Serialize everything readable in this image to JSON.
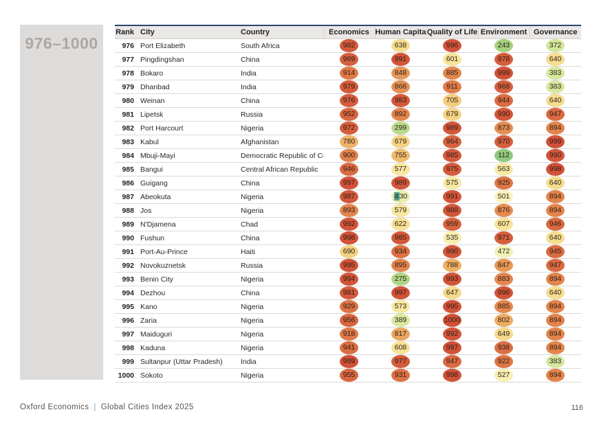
{
  "page": {
    "range_title": "976–1000",
    "footer": {
      "brand": "Oxford Economics",
      "separator": "|",
      "doc_title": "Global Cities Index 2025",
      "page_number": "116"
    }
  },
  "colors": {
    "header_border_navy": "#2a466f",
    "header_border_light": "#8fa0bc",
    "header_bg": "#eae8e6",
    "row_line": "#dbd9d7",
    "sidebar_bg": "#dedcdb",
    "sidebar_text": "#aca8a4",
    "footer_separator_blue": "#6fa8dc",
    "score_text": "#2e1f15",
    "selection_highlight": "#57a08c",
    "score_scale": [
      [
        0,
        "#7cc47e"
      ],
      [
        250,
        "#a6d27e"
      ],
      [
        400,
        "#dceaa2"
      ],
      [
        450,
        "#ecf2b4"
      ],
      [
        500,
        "#f8f2bc"
      ],
      [
        600,
        "#f7e49a"
      ],
      [
        700,
        "#f3cf7e"
      ],
      [
        800,
        "#ecac62"
      ],
      [
        900,
        "#e1814b"
      ],
      [
        1000,
        "#d05138"
      ]
    ]
  },
  "table": {
    "columns": [
      "Rank",
      "City",
      "Country",
      "Economics",
      "Human Capital",
      "Quality of Life",
      "Environment",
      "Governance"
    ],
    "highlight": {
      "rank": "987",
      "score_index": 1,
      "selected_chars": 1
    },
    "rows": [
      {
        "rank": "976",
        "city": "Port Elizabeth",
        "country": "South Africa",
        "scores": [
          982,
          638,
          996,
          243,
          372
        ]
      },
      {
        "rank": "977",
        "city": "Pingdingshan",
        "country": "China",
        "scores": [
          969,
          991,
          601,
          978,
          640
        ]
      },
      {
        "rank": "978",
        "city": "Bokaro",
        "country": "India",
        "scores": [
          914,
          848,
          885,
          999,
          383
        ]
      },
      {
        "rank": "979",
        "city": "Dhanbad",
        "country": "India",
        "scores": [
          979,
          866,
          911,
          968,
          383
        ]
      },
      {
        "rank": "980",
        "city": "Weinan",
        "country": "China",
        "scores": [
          976,
          983,
          705,
          944,
          640
        ]
      },
      {
        "rank": "981",
        "city": "Lipetsk",
        "country": "Russia",
        "scores": [
          952,
          892,
          679,
          990,
          947
        ]
      },
      {
        "rank": "982",
        "city": "Port Harcourt",
        "country": "Nigeria",
        "scores": [
          972,
          299,
          989,
          873,
          894
        ]
      },
      {
        "rank": "983",
        "city": "Kabul",
        "country": "Afghanistan",
        "scores": [
          780,
          679,
          964,
          970,
          999
        ]
      },
      {
        "rank": "984",
        "city": "Mbuji-Mayi",
        "country": "Democratic Republic of Congo",
        "scores": [
          900,
          755,
          985,
          112,
          990
        ]
      },
      {
        "rank": "985",
        "city": "Bangui",
        "country": "Central African Republic",
        "scores": [
          946,
          577,
          975,
          563,
          998
        ]
      },
      {
        "rank": "986",
        "city": "Guigang",
        "country": "China",
        "scores": [
          997,
          989,
          575,
          925,
          640
        ]
      },
      {
        "rank": "987",
        "city": "Abeokuta",
        "country": "Nigeria",
        "scores": [
          987,
          430,
          991,
          501,
          894
        ]
      },
      {
        "rank": "988",
        "city": "Jos",
        "country": "Nigeria",
        "scores": [
          893,
          579,
          988,
          876,
          894
        ]
      },
      {
        "rank": "989",
        "city": "N'Djamena",
        "country": "Chad",
        "scores": [
          992,
          622,
          959,
          607,
          946
        ]
      },
      {
        "rank": "990",
        "city": "Fushun",
        "country": "China",
        "scores": [
          998,
          985,
          535,
          971,
          640
        ]
      },
      {
        "rank": "991",
        "city": "Port-Au-Prince",
        "country": "Haiti",
        "scores": [
          690,
          934,
          990,
          472,
          945
        ]
      },
      {
        "rank": "992",
        "city": "Novokuznetsk",
        "country": "Russia",
        "scores": [
          995,
          895,
          788,
          847,
          947
        ]
      },
      {
        "rank": "993",
        "city": "Benin City",
        "country": "Nigeria",
        "scores": [
          994,
          275,
          993,
          883,
          894
        ]
      },
      {
        "rank": "994",
        "city": "Dezhou",
        "country": "China",
        "scores": [
          981,
          997,
          647,
          996,
          640
        ]
      },
      {
        "rank": "995",
        "city": "Kano",
        "country": "Nigeria",
        "scores": [
          929,
          573,
          995,
          885,
          894
        ]
      },
      {
        "rank": "996",
        "city": "Zaria",
        "country": "Nigeria",
        "scores": [
          956,
          389,
          1000,
          802,
          894
        ]
      },
      {
        "rank": "997",
        "city": "Maiduguri",
        "country": "Nigeria",
        "scores": [
          918,
          817,
          992,
          649,
          894
        ]
      },
      {
        "rank": "998",
        "city": "Kaduna",
        "country": "Nigeria",
        "scores": [
          941,
          608,
          997,
          938,
          894
        ]
      },
      {
        "rank": "999",
        "city": "Sultanpur (Uttar Pradesh)",
        "country": "India",
        "scores": [
          999,
          977,
          947,
          922,
          383
        ]
      },
      {
        "rank": "1000",
        "city": "Sokoto",
        "country": "Nigeria",
        "scores": [
          955,
          931,
          998,
          527,
          894
        ]
      }
    ]
  }
}
